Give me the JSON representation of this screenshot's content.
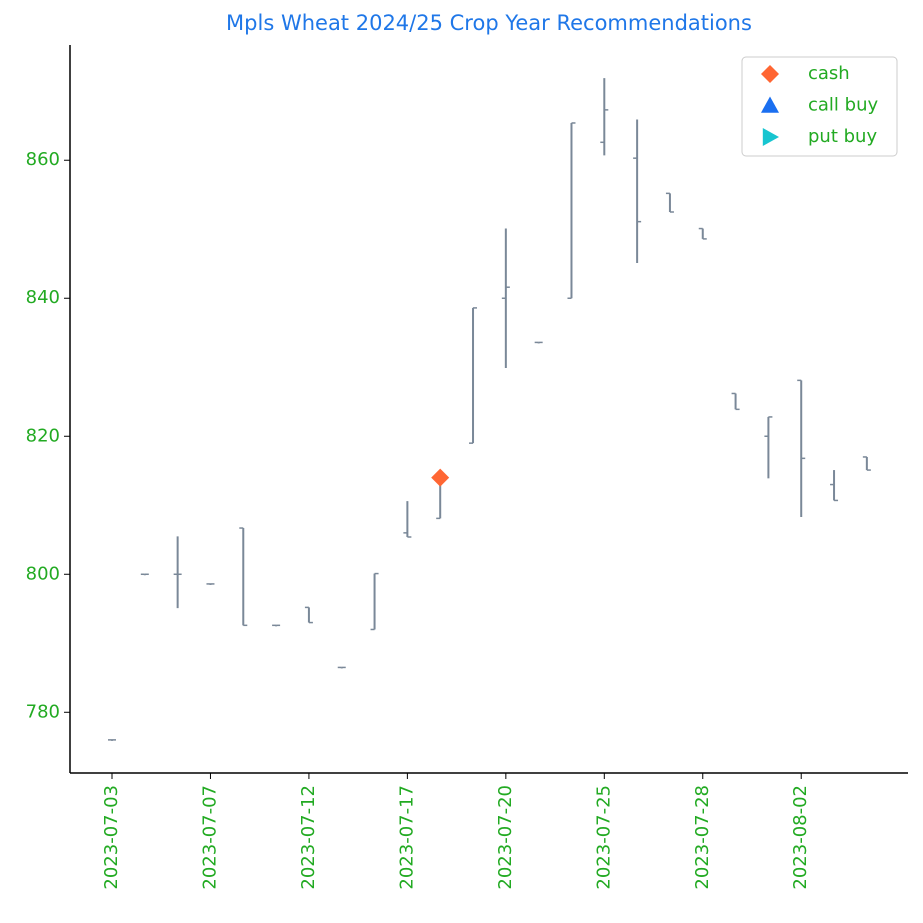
{
  "chart_data": {
    "type": "ohlc",
    "title": "Mpls Wheat 2024/25 Crop Year Recommendations",
    "categories": [
      "2023-07-03",
      null,
      null,
      "2023-07-07",
      null,
      null,
      "2023-07-12",
      null,
      null,
      "2023-07-17",
      null,
      null,
      "2023-07-20",
      null,
      null,
      "2023-07-25",
      null,
      null,
      "2023-07-28",
      null,
      null,
      "2023-08-02",
      null,
      null
    ],
    "ohlc": {
      "color": "#7a8898",
      "open": [
        776,
        800,
        800,
        798.6,
        806.7,
        792.6,
        795.2,
        786.5,
        792,
        806,
        808.1,
        819,
        840,
        833.6,
        840,
        862.6,
        860.3,
        855.2,
        850.1,
        826.2,
        820,
        828.1,
        813,
        817
      ],
      "high": [
        776,
        800,
        805.5,
        798.6,
        806.7,
        792.6,
        795.2,
        786.5,
        800.1,
        810.6,
        813.9,
        838.6,
        850.1,
        833.6,
        865.4,
        871.9,
        865.9,
        855.2,
        850.1,
        826.2,
        822.8,
        828.1,
        815.1,
        817
      ],
      "low": [
        776,
        800,
        795.1,
        798.6,
        792.6,
        792.6,
        793,
        786.5,
        792,
        805.4,
        808.1,
        819,
        829.9,
        833.6,
        840,
        860.7,
        845.1,
        852.5,
        848.6,
        823.9,
        813.9,
        808.3,
        810.7,
        815.1
      ],
      "close": [
        776,
        800,
        800,
        798.6,
        792.6,
        792.6,
        793,
        786.5,
        800.1,
        805.4,
        814,
        838.6,
        841.6,
        833.6,
        865.4,
        867.3,
        851.1,
        852.5,
        848.6,
        823.9,
        822.8,
        816.8,
        810.7,
        815.1
      ]
    },
    "series": [
      {
        "name": "cash",
        "color": "#ff6633",
        "marker": "diamond",
        "values": [
          null,
          null,
          null,
          null,
          null,
          null,
          null,
          null,
          null,
          null,
          814,
          null,
          null,
          null,
          null,
          null,
          null,
          null,
          null,
          null,
          null,
          null,
          null,
          null
        ]
      },
      {
        "name": "call buy",
        "color": "#1a6ff0",
        "marker": "triangle-up",
        "values": [
          null,
          null,
          null,
          null,
          null,
          null,
          null,
          null,
          null,
          null,
          null,
          null,
          null,
          null,
          null,
          null,
          null,
          null,
          null,
          null,
          null,
          null,
          null,
          null
        ]
      },
      {
        "name": "put buy",
        "color": "#17c5d0",
        "marker": "triangle-right",
        "values": [
          null,
          null,
          null,
          null,
          null,
          null,
          null,
          null,
          null,
          null,
          null,
          null,
          null,
          null,
          null,
          null,
          null,
          null,
          null,
          null,
          null,
          null,
          null,
          null
        ]
      }
    ],
    "ylim": [
      771.2,
      876.7
    ],
    "yticks": [
      780,
      800,
      820,
      840,
      860
    ],
    "legend": "upper right"
  }
}
